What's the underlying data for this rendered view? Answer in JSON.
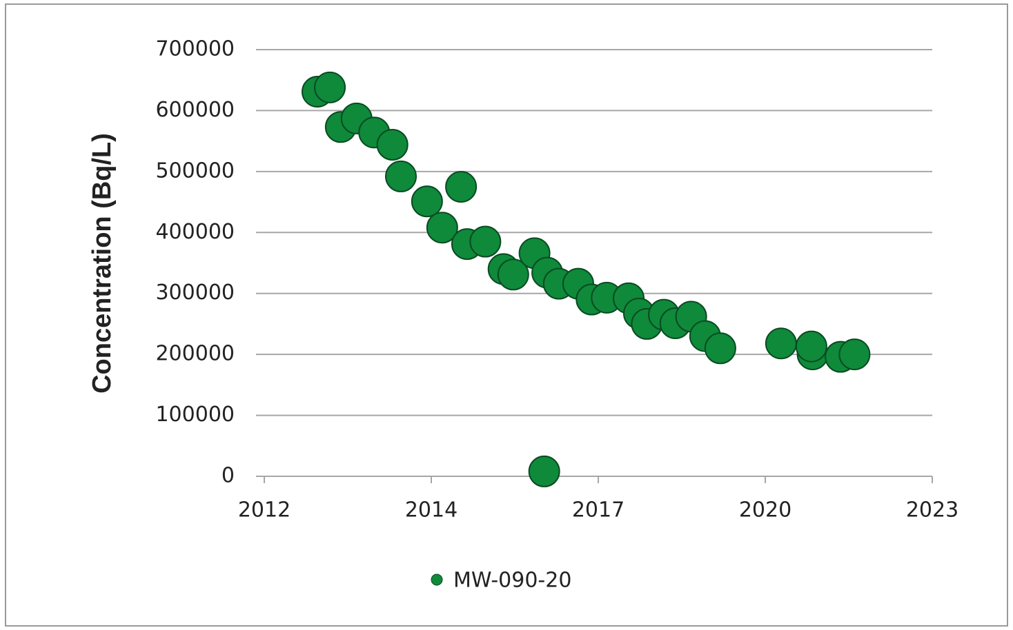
{
  "chart_data": {
    "type": "scatter",
    "y_label": "Concentration (Bq/L)",
    "xlim": [
      2012,
      2023
    ],
    "xticks": [
      2012,
      {
        "value": 2014.75,
        "label": "2014"
      },
      {
        "value": 2017.5,
        "label": "2017"
      },
      {
        "value": 2020.25,
        "label": "2020"
      },
      2023
    ],
    "ylim": [
      0,
      700000
    ],
    "yticks": [
      0,
      100000,
      200000,
      300000,
      400000,
      500000,
      600000,
      700000
    ],
    "grid": true,
    "legend": "bottom",
    "series": [
      {
        "name": "MW-090-20",
        "color": "#0e8a3a",
        "x": [
          2012.875,
          2013.08,
          2013.26,
          2013.52,
          2013.81,
          2014.11,
          2014.25,
          2014.68,
          2014.93,
          2015.24,
          2015.34,
          2015.64,
          2015.94,
          2016.1,
          2016.45,
          2016.66,
          2016.85,
          2017.17,
          2017.39,
          2017.64,
          2018.0,
          2018.17,
          2018.3,
          2018.58,
          2018.77,
          2019.03,
          2019.26,
          2019.51,
          2016.61,
          2020.51,
          2021.03,
          2021.01,
          2021.49,
          2021.72
        ],
        "values": [
          631000,
          638000,
          573000,
          587000,
          564000,
          544000,
          492000,
          451000,
          408000,
          475000,
          381000,
          385000,
          340000,
          331000,
          366000,
          334000,
          316000,
          316000,
          290000,
          293000,
          292000,
          267000,
          250000,
          265000,
          251000,
          262000,
          230000,
          210000,
          8000,
          218000,
          200000,
          213000,
          196000,
          200000
        ]
      }
    ]
  }
}
